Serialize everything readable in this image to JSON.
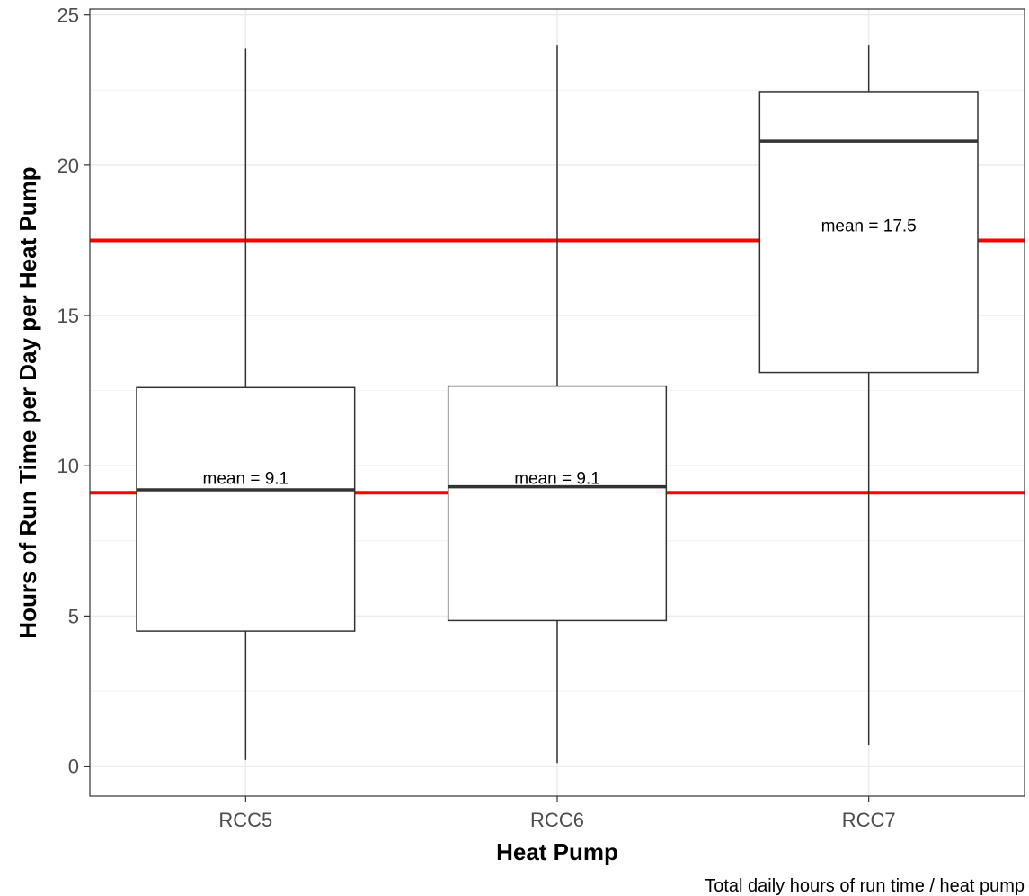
{
  "chart_data": {
    "type": "box",
    "xlabel": "Heat Pump",
    "ylabel": "Hours of Run Time per Day per Heat Pump",
    "caption": "Total daily hours of run time / heat pump",
    "ylim": [
      -1,
      25.2
    ],
    "yticks": [
      0,
      5,
      10,
      15,
      20,
      25
    ],
    "grid": true,
    "categories": [
      "RCC5",
      "RCC6",
      "RCC7"
    ],
    "boxes": [
      {
        "category": "RCC5",
        "min": 0.2,
        "q1": 4.5,
        "median": 9.2,
        "q3": 12.6,
        "max": 23.9,
        "mean_label": "mean = 9.1"
      },
      {
        "category": "RCC6",
        "min": 0.1,
        "q1": 4.85,
        "median": 9.3,
        "q3": 12.65,
        "max": 24.0,
        "mean_label": "mean = 9.1"
      },
      {
        "category": "RCC7",
        "min": 0.7,
        "q1": 13.1,
        "median": 20.8,
        "q3": 22.45,
        "max": 24.0,
        "mean_label": "mean = 17.5"
      }
    ],
    "reference_lines": [
      {
        "value": 17.5,
        "color": "#ff0000"
      },
      {
        "value": 9.1,
        "color": "#ff0000"
      }
    ]
  }
}
